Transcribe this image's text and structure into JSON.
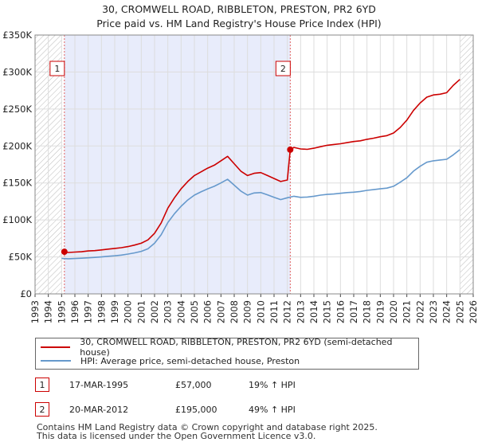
{
  "chart_data": {
    "type": "line",
    "title": "30, CROMWELL ROAD, RIBBLETON, PRESTON, PR2 6YD",
    "subtitle": "Price paid vs. HM Land Registry's House Price Index (HPI)",
    "xlabel": "",
    "ylabel": "",
    "xlim": [
      1993,
      2026
    ],
    "ylim": [
      0,
      350000
    ],
    "x_ticks": [
      "1993",
      "1994",
      "1995",
      "1996",
      "1997",
      "1998",
      "1999",
      "2000",
      "2001",
      "2002",
      "2003",
      "2004",
      "2005",
      "2006",
      "2007",
      "2008",
      "2009",
      "2010",
      "2011",
      "2012",
      "2013",
      "2014",
      "2015",
      "2016",
      "2017",
      "2018",
      "2019",
      "2020",
      "2021",
      "2022",
      "2023",
      "2024",
      "2025",
      "2026"
    ],
    "y_ticks": [
      {
        "value": 0,
        "label": "£0"
      },
      {
        "value": 50000,
        "label": "£50K"
      },
      {
        "value": 100000,
        "label": "£100K"
      },
      {
        "value": 150000,
        "label": "£150K"
      },
      {
        "value": 200000,
        "label": "£200K"
      },
      {
        "value": 250000,
        "label": "£250K"
      },
      {
        "value": 300000,
        "label": "£300K"
      },
      {
        "value": 350000,
        "label": "£350K"
      }
    ],
    "shaded_period": [
      1995.21,
      2012.22
    ],
    "hatched_before": 1995.0,
    "hatched_after": 2025.0,
    "series": [
      {
        "name": "30, CROMWELL ROAD, RIBBLETON, PRESTON, PR2 6YD (semi-detached house)",
        "color": "#cc0000",
        "x": [
          1995.21,
          1995.5,
          1996.0,
          1996.5,
          1997.0,
          1997.5,
          1998.0,
          1998.5,
          1999.0,
          1999.5,
          2000.0,
          2000.5,
          2001.0,
          2001.5,
          2002.0,
          2002.5,
          2003.0,
          2003.5,
          2004.0,
          2004.5,
          2005.0,
          2005.5,
          2006.0,
          2006.5,
          2007.0,
          2007.5,
          2008.0,
          2008.5,
          2009.0,
          2009.5,
          2010.0,
          2010.5,
          2011.0,
          2011.5,
          2012.0,
          2012.22,
          2012.5,
          2013.0,
          2013.5,
          2014.0,
          2014.5,
          2015.0,
          2015.5,
          2016.0,
          2016.5,
          2017.0,
          2017.5,
          2018.0,
          2018.5,
          2019.0,
          2019.5,
          2020.0,
          2020.5,
          2021.0,
          2021.5,
          2022.0,
          2022.5,
          2023.0,
          2023.5,
          2024.0,
          2024.5,
          2025.0
        ],
        "y": [
          57000,
          56000,
          56500,
          57000,
          58000,
          58500,
          59500,
          60500,
          61500,
          62500,
          64000,
          66000,
          68500,
          73000,
          82000,
          96000,
          116000,
          130000,
          142000,
          152000,
          160000,
          165000,
          170000,
          174000,
          180000,
          186000,
          176000,
          166000,
          160000,
          163000,
          164000,
          160000,
          156000,
          152000,
          154000,
          195000,
          198000,
          196000,
          195500,
          197000,
          199000,
          201000,
          202000,
          203000,
          204500,
          206000,
          207000,
          209000,
          210500,
          212500,
          214000,
          217500,
          225000,
          235000,
          248000,
          258000,
          266000,
          269000,
          270000,
          272000,
          282000,
          290000
        ]
      },
      {
        "name": "HPI: Average price, semi-detached house, Preston",
        "color": "#6699cc",
        "x": [
          1995.0,
          1995.5,
          1996.0,
          1996.5,
          1997.0,
          1997.5,
          1998.0,
          1998.5,
          1999.0,
          1999.5,
          2000.0,
          2000.5,
          2001.0,
          2001.5,
          2002.0,
          2002.5,
          2003.0,
          2003.5,
          2004.0,
          2004.5,
          2005.0,
          2005.5,
          2006.0,
          2006.5,
          2007.0,
          2007.5,
          2008.0,
          2008.5,
          2009.0,
          2009.5,
          2010.0,
          2010.5,
          2011.0,
          2011.5,
          2012.0,
          2012.5,
          2013.0,
          2013.5,
          2014.0,
          2014.5,
          2015.0,
          2015.5,
          2016.0,
          2016.5,
          2017.0,
          2017.5,
          2018.0,
          2018.5,
          2019.0,
          2019.5,
          2020.0,
          2020.5,
          2021.0,
          2021.5,
          2022.0,
          2022.5,
          2023.0,
          2023.5,
          2024.0,
          2024.5,
          2025.0
        ],
        "y": [
          48000,
          47500,
          47800,
          48200,
          48800,
          49300,
          50000,
          50800,
          51500,
          52500,
          53800,
          55500,
          57500,
          61000,
          68500,
          80000,
          96500,
          108500,
          118500,
          127000,
          133500,
          138000,
          142000,
          145500,
          150000,
          155000,
          147000,
          139000,
          133500,
          136500,
          137000,
          134000,
          130500,
          127500,
          130000,
          132000,
          130500,
          131000,
          132000,
          133500,
          134500,
          135000,
          136000,
          137000,
          137500,
          138500,
          140000,
          141000,
          142000,
          143000,
          145500,
          151000,
          157000,
          166000,
          172500,
          178000,
          180000,
          181000,
          182000,
          188000,
          195000
        ]
      }
    ],
    "markers": [
      {
        "label": "1",
        "x": 1995.21,
        "y": 57000
      },
      {
        "label": "2",
        "x": 2012.22,
        "y": 195000
      }
    ]
  },
  "legend": {
    "line1": "30, CROMWELL ROAD, RIBBLETON, PRESTON, PR2 6YD (semi-detached house)",
    "line2": "HPI: Average price, semi-detached house, Preston"
  },
  "sales": [
    {
      "num": "1",
      "date": "17-MAR-1995",
      "price": "£57,000",
      "hpi": "19% ↑ HPI"
    },
    {
      "num": "2",
      "date": "20-MAR-2012",
      "price": "£195,000",
      "hpi": "49% ↑ HPI"
    }
  ],
  "footer": {
    "line1": "Contains HM Land Registry data © Crown copyright and database right 2025.",
    "line2": "This data is licensed under the Open Government Licence v3.0."
  },
  "colors": {
    "property": "#cc0000",
    "hpi": "#6699cc",
    "shade": "#e8ecfb",
    "grid": "#dddddd"
  }
}
